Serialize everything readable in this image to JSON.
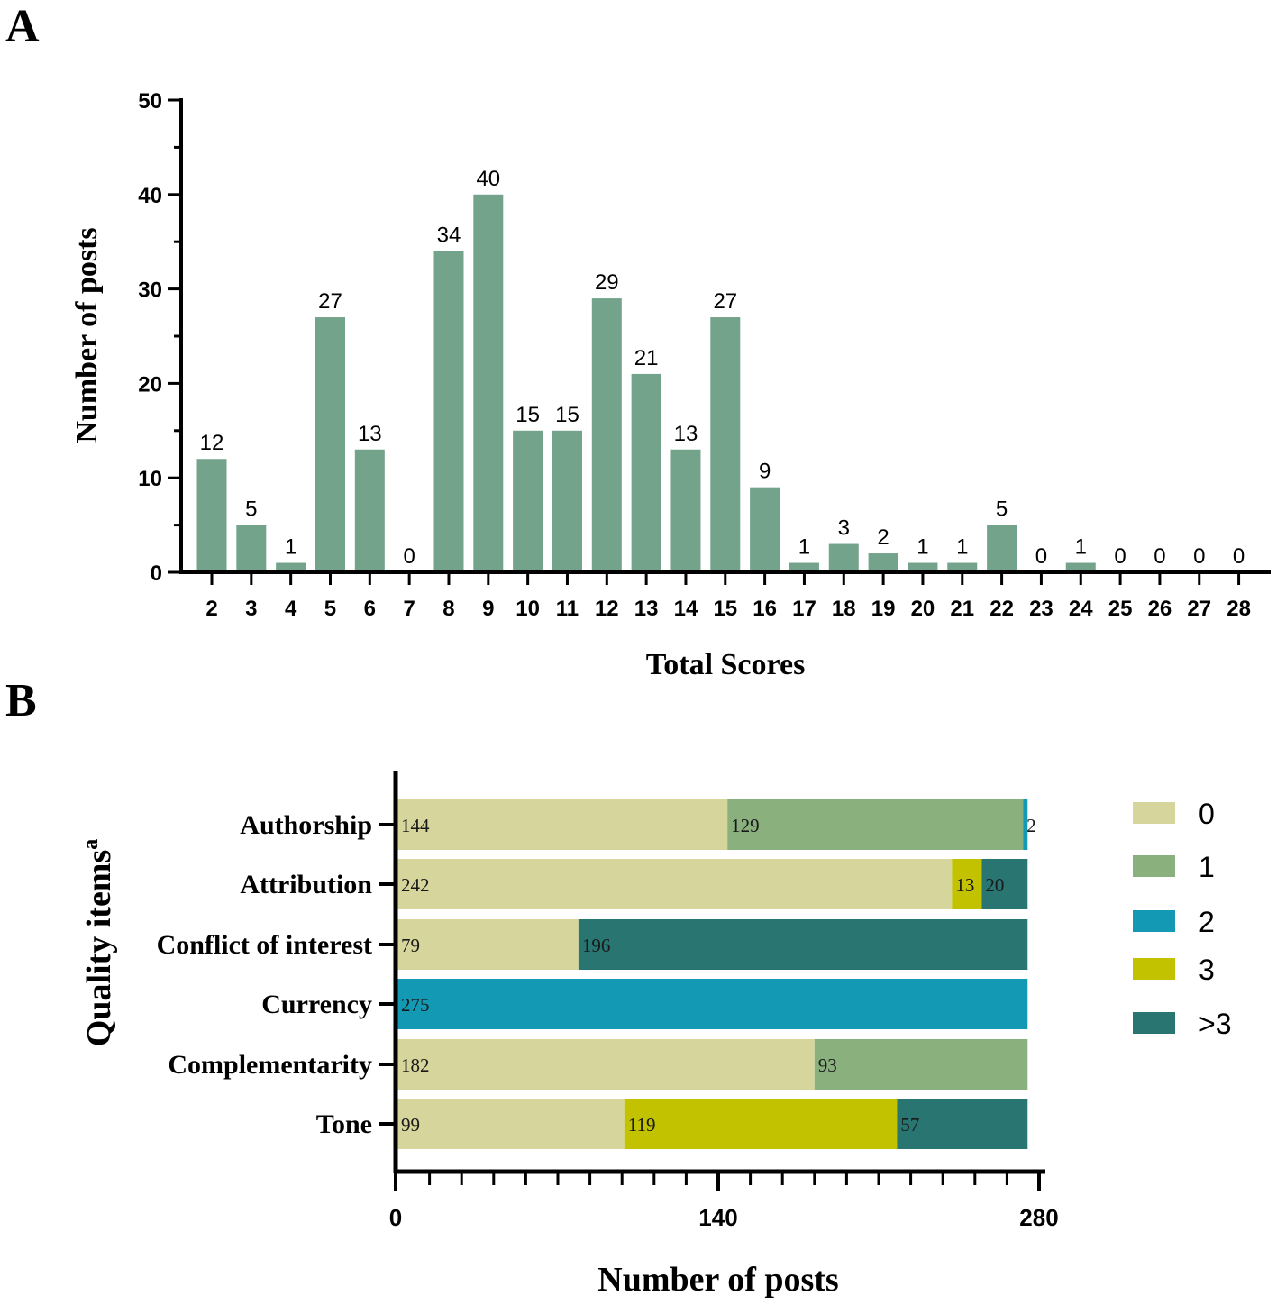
{
  "colors": {
    "bar_a": "#73a38a",
    "seg_0": "#d6d69c",
    "seg_1": "#8ab07e",
    "seg_2": "#1499b4",
    "seg_3": "#c2c200",
    "seg_gt3": "#287571"
  },
  "chart_data": [
    {
      "panel": "A",
      "type": "bar",
      "title": "",
      "xlabel": "Total Scores",
      "ylabel": "Number of posts",
      "ylim": [
        0,
        50
      ],
      "yticks": [
        "0",
        "10",
        "20",
        "30",
        "40",
        "50"
      ],
      "categories": [
        "2",
        "3",
        "4",
        "5",
        "6",
        "7",
        "8",
        "9",
        "10",
        "11",
        "12",
        "13",
        "14",
        "15",
        "16",
        "17",
        "18",
        "19",
        "20",
        "21",
        "22",
        "23",
        "24",
        "25",
        "26",
        "27",
        "28"
      ],
      "values": [
        12,
        5,
        1,
        27,
        13,
        0,
        34,
        40,
        15,
        15,
        29,
        21,
        13,
        27,
        9,
        1,
        3,
        2,
        1,
        1,
        5,
        0,
        1,
        0,
        0,
        0,
        0
      ],
      "value_labels": [
        "12",
        "5",
        "1",
        "27",
        "13",
        "0",
        "34",
        "40",
        "15",
        "15",
        "29",
        "21",
        "13",
        "27",
        "9",
        "1",
        "3",
        "2",
        "1",
        "1",
        "5",
        "0",
        "1",
        "0",
        "0",
        "0",
        "0"
      ]
    },
    {
      "panel": "B",
      "type": "bar",
      "orientation": "horizontal",
      "stacked": true,
      "xlabel": "Number of posts",
      "ylabel_main": "Quality items",
      "ylabel_superscript": "a",
      "xlim": [
        0,
        280
      ],
      "xticks": [
        "0",
        "140",
        "280"
      ],
      "categories": [
        "Authorship",
        "Attribution",
        "Conflict of interest",
        "Currency",
        "Complementarity",
        "Tone"
      ],
      "legend": [
        "0",
        "1",
        "2",
        "3",
        ">3"
      ],
      "legend_position": "right",
      "rows": [
        {
          "segments": [
            {
              "score": "0",
              "value": 144,
              "label": "144"
            },
            {
              "score": "1",
              "value": 129,
              "label": "129"
            },
            {
              "score": "2",
              "value": 2,
              "label": "2"
            }
          ]
        },
        {
          "segments": [
            {
              "score": "0",
              "value": 242,
              "label": "242"
            },
            {
              "score": "3",
              "value": 13,
              "label": "13"
            },
            {
              "score": ">3",
              "value": 20,
              "label": "20"
            }
          ]
        },
        {
          "segments": [
            {
              "score": "0",
              "value": 79,
              "label": "79"
            },
            {
              "score": ">3",
              "value": 196,
              "label": "196"
            }
          ]
        },
        {
          "segments": [
            {
              "score": "2",
              "value": 275,
              "label": "275"
            }
          ]
        },
        {
          "segments": [
            {
              "score": "0",
              "value": 182,
              "label": "182"
            },
            {
              "score": "1",
              "value": 93,
              "label": "93"
            }
          ]
        },
        {
          "segments": [
            {
              "score": "0",
              "value": 99,
              "label": "99"
            },
            {
              "score": "3",
              "value": 119,
              "label": "119"
            },
            {
              "score": ">3",
              "value": 57,
              "label": "57"
            }
          ]
        }
      ]
    }
  ]
}
